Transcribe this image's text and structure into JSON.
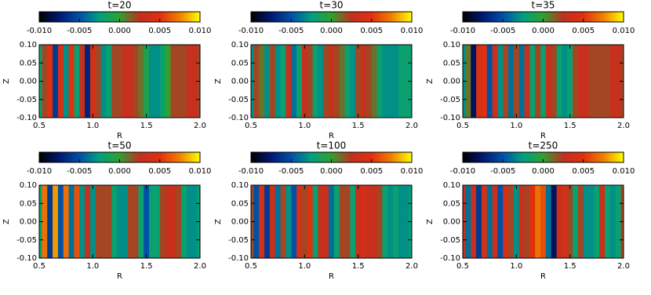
{
  "chart_data": [
    {
      "type": "heatmap",
      "title": "t=20",
      "xlabel": "R",
      "ylabel": "Z",
      "xlim": [
        0.5,
        2.0
      ],
      "xticks": [
        {
          "value": 0.5,
          "label": "0.5"
        },
        {
          "value": 1.0,
          "label": "1.0"
        },
        {
          "value": 1.5,
          "label": "1.5"
        },
        {
          "value": 2.0,
          "label": "2.0"
        }
      ],
      "ylim": [
        -0.1,
        0.1
      ],
      "yticks": [
        {
          "value": -0.1,
          "label": "-0.10"
        },
        {
          "value": -0.05,
          "label": "-0.05"
        },
        {
          "value": 0,
          "label": "0.00"
        },
        {
          "value": 0.05,
          "label": "0.05"
        },
        {
          "value": 0.1,
          "label": "0.10"
        }
      ],
      "clim": [
        -0.01,
        0.01
      ],
      "cticks": [
        {
          "value": -0.01,
          "label": "-0.010"
        },
        {
          "value": -0.005,
          "label": "-0.005"
        },
        {
          "value": 0,
          "label": "0.000"
        },
        {
          "value": 0.005,
          "label": "0.005"
        },
        {
          "value": 0.01,
          "label": "0.010"
        }
      ],
      "colormap": [
        "#000000",
        "#001870",
        "#0050a8",
        "#00a080",
        "#30a030",
        "#c03020",
        "#e03010",
        "#f08000",
        "#ffff00"
      ],
      "x": [
        0.5,
        0.55,
        0.6,
        0.65,
        0.7,
        0.75,
        0.8,
        0.85,
        0.9,
        0.95,
        1.0,
        1.05,
        1.1,
        1.15,
        1.2,
        1.25,
        1.3,
        1.35,
        1.4,
        1.45,
        1.5,
        1.55,
        1.6,
        1.65,
        1.7,
        1.75,
        1.8,
        1.85,
        1.9,
        1.95,
        2.0
      ],
      "values": [
        -0.002,
        0.002,
        0.005,
        -0.006,
        0.004,
        -0.003,
        0.005,
        -0.002,
        0.003,
        -0.007,
        0.004,
        0.002,
        -0.003,
        -0.002,
        0.002,
        0.002,
        0.003,
        0.003,
        0.002,
        0.001,
        -0.001,
        -0.003,
        -0.003,
        -0.002,
        0,
        0.002,
        0.002,
        0.002,
        0.003,
        0.003,
        0.002
      ]
    },
    {
      "type": "heatmap",
      "title": "t=30",
      "xlabel": "R",
      "ylabel": "Z",
      "xlim": [
        0.5,
        2.0
      ],
      "xticks": [
        {
          "value": 0.5,
          "label": "0.5"
        },
        {
          "value": 1.0,
          "label": "1.0"
        },
        {
          "value": 1.5,
          "label": "1.5"
        },
        {
          "value": 2.0,
          "label": "2.0"
        }
      ],
      "ylim": [
        -0.1,
        0.1
      ],
      "yticks": [
        {
          "value": -0.1,
          "label": "-0.10"
        },
        {
          "value": -0.05,
          "label": "-0.05"
        },
        {
          "value": 0,
          "label": "0.00"
        },
        {
          "value": 0.05,
          "label": "0.05"
        },
        {
          "value": 0.1,
          "label": "0.10"
        }
      ],
      "clim": [
        -0.01,
        0.01
      ],
      "cticks": [
        {
          "value": -0.01,
          "label": "-0.010"
        },
        {
          "value": -0.005,
          "label": "-0.005"
        },
        {
          "value": 0,
          "label": "0.000"
        },
        {
          "value": 0.005,
          "label": "0.005"
        },
        {
          "value": 0.01,
          "label": "0.010"
        }
      ],
      "colormap": [
        "#000000",
        "#001870",
        "#0050a8",
        "#00a080",
        "#30a030",
        "#c03020",
        "#e03010",
        "#f08000",
        "#ffff00"
      ],
      "x": [
        0.5,
        0.55,
        0.6,
        0.65,
        0.7,
        0.75,
        0.8,
        0.85,
        0.9,
        0.95,
        1.0,
        1.05,
        1.1,
        1.15,
        1.2,
        1.25,
        1.3,
        1.35,
        1.4,
        1.45,
        1.5,
        1.55,
        1.6,
        1.65,
        1.7,
        1.75,
        1.8,
        1.85,
        1.9,
        1.95,
        2.0
      ],
      "values": [
        -0.003,
        0.002,
        0.001,
        -0.003,
        0.002,
        -0.003,
        -0.002,
        0.003,
        -0.004,
        -0.002,
        0.003,
        0.002,
        -0.002,
        -0.003,
        0.002,
        0.003,
        0.002,
        0.001,
        -0.002,
        -0.003,
        0.002,
        0.003,
        0.002,
        0.001,
        -0.002,
        -0.003,
        -0.003,
        -0.003,
        -0.002,
        -0.002,
        -0.002
      ]
    },
    {
      "type": "heatmap",
      "title": "t=35",
      "xlabel": "R",
      "ylabel": "Z",
      "xlim": [
        0.5,
        2.0
      ],
      "xticks": [
        {
          "value": 0.5,
          "label": "0.5"
        },
        {
          "value": 1.0,
          "label": "1.0"
        },
        {
          "value": 1.5,
          "label": "1.5"
        },
        {
          "value": 2.0,
          "label": "2.0"
        }
      ],
      "ylim": [
        -0.1,
        0.1
      ],
      "yticks": [
        {
          "value": -0.1,
          "label": "-0.10"
        },
        {
          "value": -0.05,
          "label": "-0.05"
        },
        {
          "value": 0,
          "label": "0.00"
        },
        {
          "value": 0.05,
          "label": "0.05"
        },
        {
          "value": 0.1,
          "label": "0.10"
        }
      ],
      "clim": [
        -0.01,
        0.01
      ],
      "cticks": [
        {
          "value": -0.01,
          "label": "-0.010"
        },
        {
          "value": -0.005,
          "label": "-0.005"
        },
        {
          "value": 0,
          "label": "0.000"
        },
        {
          "value": 0.005,
          "label": "0.005"
        },
        {
          "value": 0.01,
          "label": "0.010"
        }
      ],
      "colormap": [
        "#000000",
        "#001870",
        "#0050a8",
        "#00a080",
        "#30a030",
        "#c03020",
        "#e03010",
        "#f08000",
        "#ffff00"
      ],
      "x": [
        0.5,
        0.55,
        0.6,
        0.65,
        0.7,
        0.75,
        0.8,
        0.85,
        0.9,
        0.95,
        1.0,
        1.05,
        1.1,
        1.15,
        1.2,
        1.25,
        1.3,
        1.35,
        1.4,
        1.45,
        1.5,
        1.55,
        1.6,
        1.65,
        1.7,
        1.75,
        1.8,
        1.85,
        1.9,
        1.95,
        2.0
      ],
      "values": [
        -0.003,
        0.001,
        -0.008,
        0.004,
        0.005,
        -0.005,
        0.003,
        -0.003,
        0.002,
        -0.004,
        0.002,
        -0.004,
        0.003,
        -0.002,
        0.002,
        -0.002,
        0.003,
        0.002,
        -0.002,
        -0.003,
        -0.002,
        0.002,
        0.003,
        0.003,
        0.002,
        0.002,
        0.002,
        0.002,
        0.003,
        0.003,
        0.002
      ]
    },
    {
      "type": "heatmap",
      "title": "t=50",
      "xlabel": "R",
      "ylabel": "Z",
      "xlim": [
        0.5,
        2.0
      ],
      "xticks": [
        {
          "value": 0.5,
          "label": "0.5"
        },
        {
          "value": 1.0,
          "label": "1.0"
        },
        {
          "value": 1.5,
          "label": "1.5"
        },
        {
          "value": 2.0,
          "label": "2.0"
        }
      ],
      "ylim": [
        -0.1,
        0.1
      ],
      "yticks": [
        {
          "value": -0.1,
          "label": "-0.10"
        },
        {
          "value": -0.05,
          "label": "-0.05"
        },
        {
          "value": 0,
          "label": "0.00"
        },
        {
          "value": 0.05,
          "label": "0.05"
        },
        {
          "value": 0.1,
          "label": "0.10"
        }
      ],
      "clim": [
        -0.01,
        0.01
      ],
      "cticks": [
        {
          "value": -0.01,
          "label": "-0.010"
        },
        {
          "value": -0.005,
          "label": "-0.005"
        },
        {
          "value": 0,
          "label": "0.000"
        },
        {
          "value": 0.005,
          "label": "0.005"
        },
        {
          "value": 0.01,
          "label": "0.010"
        }
      ],
      "colormap": [
        "#000000",
        "#001870",
        "#0050a8",
        "#00a080",
        "#30a030",
        "#c03020",
        "#e03010",
        "#f08000",
        "#ffff00"
      ],
      "x": [
        0.5,
        0.55,
        0.6,
        0.65,
        0.7,
        0.75,
        0.8,
        0.85,
        0.9,
        0.95,
        1.0,
        1.05,
        1.1,
        1.15,
        1.2,
        1.25,
        1.3,
        1.35,
        1.4,
        1.45,
        1.5,
        1.55,
        1.6,
        1.65,
        1.7,
        1.75,
        1.8,
        1.85,
        1.9,
        1.95,
        2.0
      ],
      "values": [
        -0.002,
        0.007,
        -0.006,
        0.008,
        -0.005,
        0.007,
        -0.004,
        0.006,
        -0.003,
        0.003,
        -0.003,
        0.002,
        0.002,
        0.002,
        -0.002,
        -0.003,
        -0.003,
        0.002,
        0.002,
        -0.002,
        -0.005,
        -0.002,
        -0.002,
        0.002,
        0.003,
        0.003,
        0.002,
        -0.002,
        -0.003,
        -0.003,
        -0.002
      ]
    },
    {
      "type": "heatmap",
      "title": "t=100",
      "xlabel": "R",
      "ylabel": "Z",
      "xlim": [
        0.5,
        2.0
      ],
      "xticks": [
        {
          "value": 0.5,
          "label": "0.5"
        },
        {
          "value": 1.0,
          "label": "1.0"
        },
        {
          "value": 1.5,
          "label": "1.5"
        },
        {
          "value": 2.0,
          "label": "2.0"
        }
      ],
      "ylim": [
        -0.1,
        0.1
      ],
      "yticks": [
        {
          "value": -0.1,
          "label": "-0.10"
        },
        {
          "value": -0.05,
          "label": "-0.05"
        },
        {
          "value": 0,
          "label": "0.00"
        },
        {
          "value": 0.05,
          "label": "0.05"
        },
        {
          "value": 0.1,
          "label": "0.10"
        }
      ],
      "clim": [
        -0.01,
        0.01
      ],
      "cticks": [
        {
          "value": -0.01,
          "label": "-0.010"
        },
        {
          "value": -0.005,
          "label": "-0.005"
        },
        {
          "value": 0,
          "label": "0.000"
        },
        {
          "value": 0.005,
          "label": "0.005"
        },
        {
          "value": 0.01,
          "label": "0.010"
        }
      ],
      "colormap": [
        "#000000",
        "#001870",
        "#0050a8",
        "#00a080",
        "#30a030",
        "#c03020",
        "#e03010",
        "#f08000",
        "#ffff00"
      ],
      "x": [
        0.5,
        0.55,
        0.6,
        0.65,
        0.7,
        0.75,
        0.8,
        0.85,
        0.9,
        0.95,
        1.0,
        1.05,
        1.1,
        1.15,
        1.2,
        1.25,
        1.3,
        1.35,
        1.4,
        1.45,
        1.5,
        1.55,
        1.6,
        1.65,
        1.7,
        1.75,
        1.8,
        1.85,
        1.9,
        1.95,
        2.0
      ],
      "values": [
        0.002,
        -0.005,
        0.004,
        -0.006,
        0.003,
        -0.004,
        0.002,
        -0.003,
        -0.005,
        0.004,
        0.002,
        0.005,
        -0.002,
        0.003,
        0.003,
        -0.004,
        -0.002,
        0.002,
        0.002,
        -0.002,
        0.003,
        0.004,
        0.003,
        0.003,
        0.002,
        -0.002,
        -0.003,
        -0.002,
        -0.003,
        -0.003,
        -0.002
      ]
    },
    {
      "type": "heatmap",
      "title": "t=250",
      "xlabel": "R",
      "ylabel": "Z",
      "xlim": [
        0.5,
        2.0
      ],
      "xticks": [
        {
          "value": 0.5,
          "label": "0.5"
        },
        {
          "value": 1.0,
          "label": "1.0"
        },
        {
          "value": 1.5,
          "label": "1.5"
        },
        {
          "value": 2.0,
          "label": "2.0"
        }
      ],
      "ylim": [
        -0.1,
        0.1
      ],
      "yticks": [
        {
          "value": -0.1,
          "label": "-0.10"
        },
        {
          "value": -0.05,
          "label": "-0.05"
        },
        {
          "value": 0,
          "label": "0.00"
        },
        {
          "value": 0.05,
          "label": "0.05"
        },
        {
          "value": 0.1,
          "label": "0.10"
        }
      ],
      "clim": [
        -0.01,
        0.01
      ],
      "cticks": [
        {
          "value": -0.01,
          "label": "-0.010"
        },
        {
          "value": -0.005,
          "label": "-0.005"
        },
        {
          "value": 0,
          "label": "0.000"
        },
        {
          "value": 0.005,
          "label": "0.005"
        },
        {
          "value": 0.01,
          "label": "0.010"
        }
      ],
      "colormap": [
        "#000000",
        "#001870",
        "#0050a8",
        "#00a080",
        "#30a030",
        "#c03020",
        "#e03010",
        "#f08000",
        "#ffff00"
      ],
      "x": [
        0.5,
        0.55,
        0.6,
        0.65,
        0.7,
        0.75,
        0.8,
        0.85,
        0.9,
        0.95,
        1.0,
        1.05,
        1.1,
        1.15,
        1.2,
        1.25,
        1.3,
        1.35,
        1.4,
        1.45,
        1.5,
        1.55,
        1.6,
        1.65,
        1.7,
        1.75,
        1.8,
        1.85,
        1.9,
        1.95,
        2.0
      ],
      "values": [
        0.003,
        -0.004,
        0.003,
        -0.006,
        0.004,
        -0.004,
        0.003,
        -0.005,
        0.004,
        0.002,
        -0.003,
        0.003,
        0.002,
        0.005,
        0.007,
        0.006,
        -0.004,
        -0.008,
        0.003,
        0.004,
        0.002,
        -0.002,
        0.002,
        -0.003,
        -0.003,
        -0.002,
        0.003,
        -0.002,
        -0.003,
        -0.002,
        0.002
      ]
    }
  ]
}
